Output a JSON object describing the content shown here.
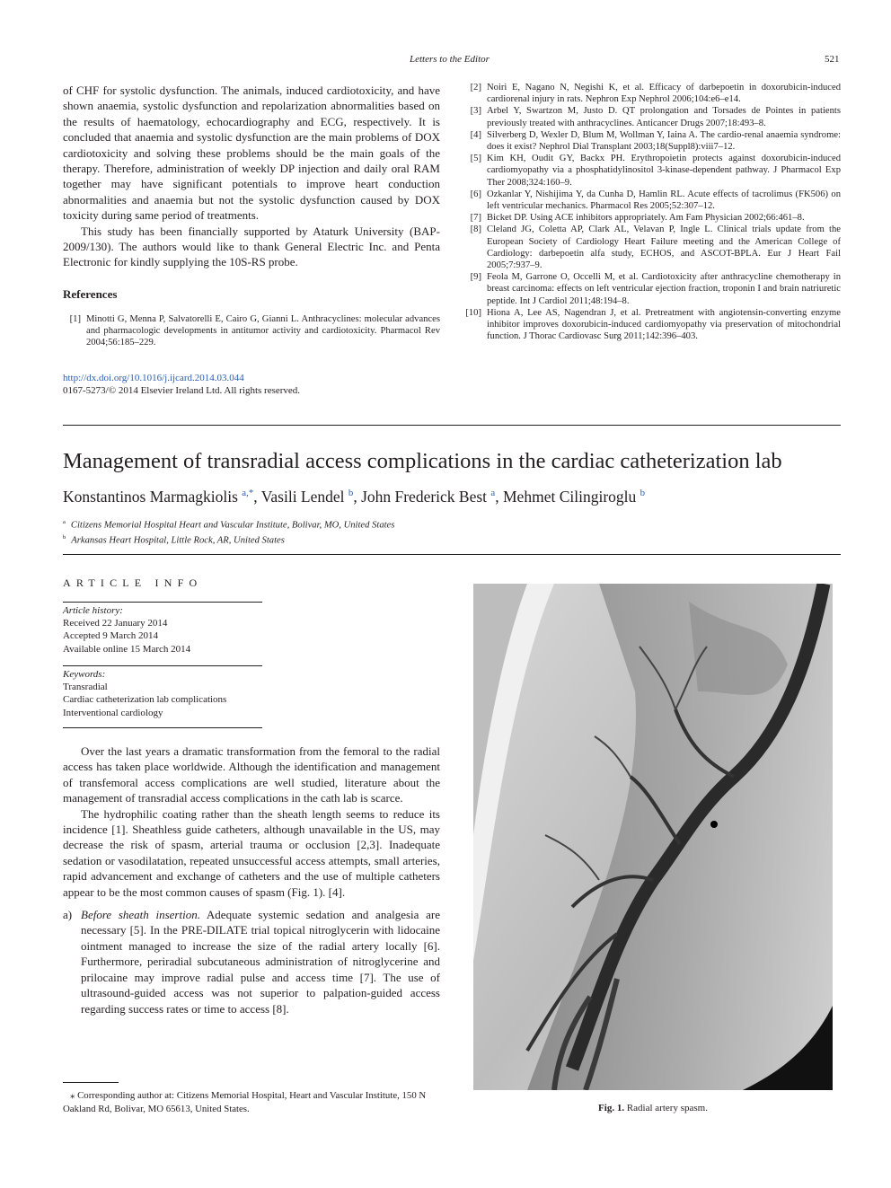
{
  "header": {
    "running_title": "Letters to the Editor",
    "page": "521"
  },
  "letter": {
    "paragraphs": [
      "of CHF for systolic dysfunction. The animals, induced cardiotoxicity, and have shown anaemia, systolic dysfunction and repolarization abnormalities based on the results of haematology, echocardiography and ECG, respectively. It is concluded that anaemia and systolic dysfunction are the main problems of DOX cardiotoxicity and solving these problems should be the main goals of the therapy. Therefore, administration of weekly DP injection and daily oral RAM together may have significant potentials to improve heart conduction abnormalities and anaemia but not the systolic dysfunction caused by DOX toxicity during same period of treatments.",
      "This study has been financially supported by Ataturk University (BAP-2009/130). The authors would like to thank General Electric Inc. and Penta Electronic for kindly supplying the 10S-RS probe."
    ],
    "references_heading": "References",
    "references": [
      {
        "num": "[1]",
        "text": "Minotti G, Menna P, Salvatorelli E, Cairo G, Gianni L. Anthracyclines: molecular advances and pharmacologic developments in antitumor activity and cardiotoxicity. Pharmacol Rev 2004;56:185–229."
      },
      {
        "num": "[2]",
        "text": "Noiri E, Nagano N, Negishi K, et al. Efficacy of darbepoetin in doxorubicin-induced cardiorenal injury in rats. Nephron Exp Nephrol 2006;104:e6–e14."
      },
      {
        "num": "[3]",
        "text": "Arbel Y, Swartzon M, Justo D. QT prolongation and Torsades de Pointes in patients previously treated with anthracyclines. Anticancer Drugs 2007;18:493–8."
      },
      {
        "num": "[4]",
        "text": "Silverberg D, Wexler D, Blum M, Wollman Y, Iaina A. The cardio-renal anaemia syndrome: does it exist? Nephrol Dial Transplant 2003;18(Suppl8):viii7–12."
      },
      {
        "num": "[5]",
        "text": "Kim KH, Oudit GY, Backx PH. Erythropoietin protects against doxorubicin-induced cardiomyopathy via a phosphatidylinositol 3-kinase-dependent pathway. J Pharmacol Exp Ther 2008;324:160–9."
      },
      {
        "num": "[6]",
        "text": "Ozkanlar Y, Nishijima Y, da Cunha D, Hamlin RL. Acute effects of tacrolimus (FK506) on left ventricular mechanics. Pharmacol Res 2005;52:307–12."
      },
      {
        "num": "[7]",
        "text": "Bicket DP. Using ACE inhibitors appropriately. Am Fam Physician 2002;66:461–8."
      },
      {
        "num": "[8]",
        "text": "Cleland JG, Coletta AP, Clark AL, Velavan P, Ingle L. Clinical trials update from the European Society of Cardiology Heart Failure meeting and the American College of Cardiology: darbepoetin alfa study, ECHOS, and ASCOT-BPLA. Eur J Heart Fail 2005;7:937–9."
      },
      {
        "num": "[9]",
        "text": "Feola M, Garrone O, Occelli M, et al. Cardiotoxicity after anthracycline chemotherapy in breast carcinoma: effects on left ventricular ejection fraction, troponin I and brain natriuretic peptide. Int J Cardiol 2011;48:194–8."
      },
      {
        "num": "[10]",
        "text": "Hiona A, Lee AS, Nagendran J, et al. Pretreatment with angiotensin-converting enzyme inhibitor improves doxorubicin-induced cardiomyopathy via preservation of mitochondrial function. J Thorac Cardiovasc Surg 2011;142:396–403."
      }
    ],
    "doi": "http://dx.doi.org/10.1016/j.ijcard.2014.03.044",
    "copyright": "0167-5273/© 2014 Elsevier Ireland Ltd. All rights reserved."
  },
  "article": {
    "title": "Management of transradial access complications in the cardiac catheterization lab",
    "authors": [
      {
        "name": "Konstantinos Marmagkiolis",
        "sup": "a,*"
      },
      {
        "name": "Vasili Lendel",
        "sup": "b"
      },
      {
        "name": "John Frederick Best",
        "sup": "a"
      },
      {
        "name": "Mehmet Cilingiroglu",
        "sup": "b"
      }
    ],
    "affiliations": [
      {
        "sup": "a",
        "text": "Citizens Memorial Hospital Heart and Vascular Institute, Bolivar, MO, United States"
      },
      {
        "sup": "b",
        "text": "Arkansas Heart Hospital, Little Rock, AR, United States"
      }
    ],
    "info_heading": "ARTICLE INFO",
    "history_label": "Article history:",
    "history": [
      "Received 22 January 2014",
      "Accepted 9 March 2014",
      "Available online 15 March 2014"
    ],
    "keywords_label": "Keywords:",
    "keywords": [
      "Transradial",
      "Cardiac catheterization lab complications",
      "Interventional cardiology"
    ],
    "body": [
      "Over the last years a dramatic transformation from the femoral to the radial access has taken place worldwide. Although the identification and management of transfemoral access complications are well studied, literature about the management of transradial access complications in the cath lab is scarce.",
      "The hydrophilic coating rather than the sheath length seems to reduce its incidence [1]. Sheathless guide catheters, although unavailable in the US, may decrease the risk of spasm, arterial trauma or occlusion [2,3]. Inadequate sedation or vasodilatation, repeated unsuccessful access attempts, small arteries, rapid advancement and exchange of catheters and the use of multiple catheters appear to be the most common causes of spasm (Fig. 1). [4]."
    ],
    "list": [
      {
        "label": "a)",
        "lead": "Before sheath insertion.",
        "text": "Adequate systemic sedation and analgesia are necessary [5]. In the PRE-DILATE trial topical nitroglycerin with lidocaine ointment managed to increase the size of the radial artery locally [6]. Furthermore, periradial subcutaneous administration of nitroglycerine and prilocaine may improve radial pulse and access time [7]. The use of ultrasound-guided access was not superior to palpation-guided access regarding success rates or time to access [8]."
      }
    ],
    "footnote": {
      "symbol": "⁎",
      "text": "Corresponding author at: Citizens Memorial Hospital, Heart and Vascular Institute, 150 N Oakland Rd, Bolivar, MO 65613, United States."
    },
    "figure": {
      "label": "Fig. 1.",
      "caption": "Radial artery spasm."
    }
  }
}
